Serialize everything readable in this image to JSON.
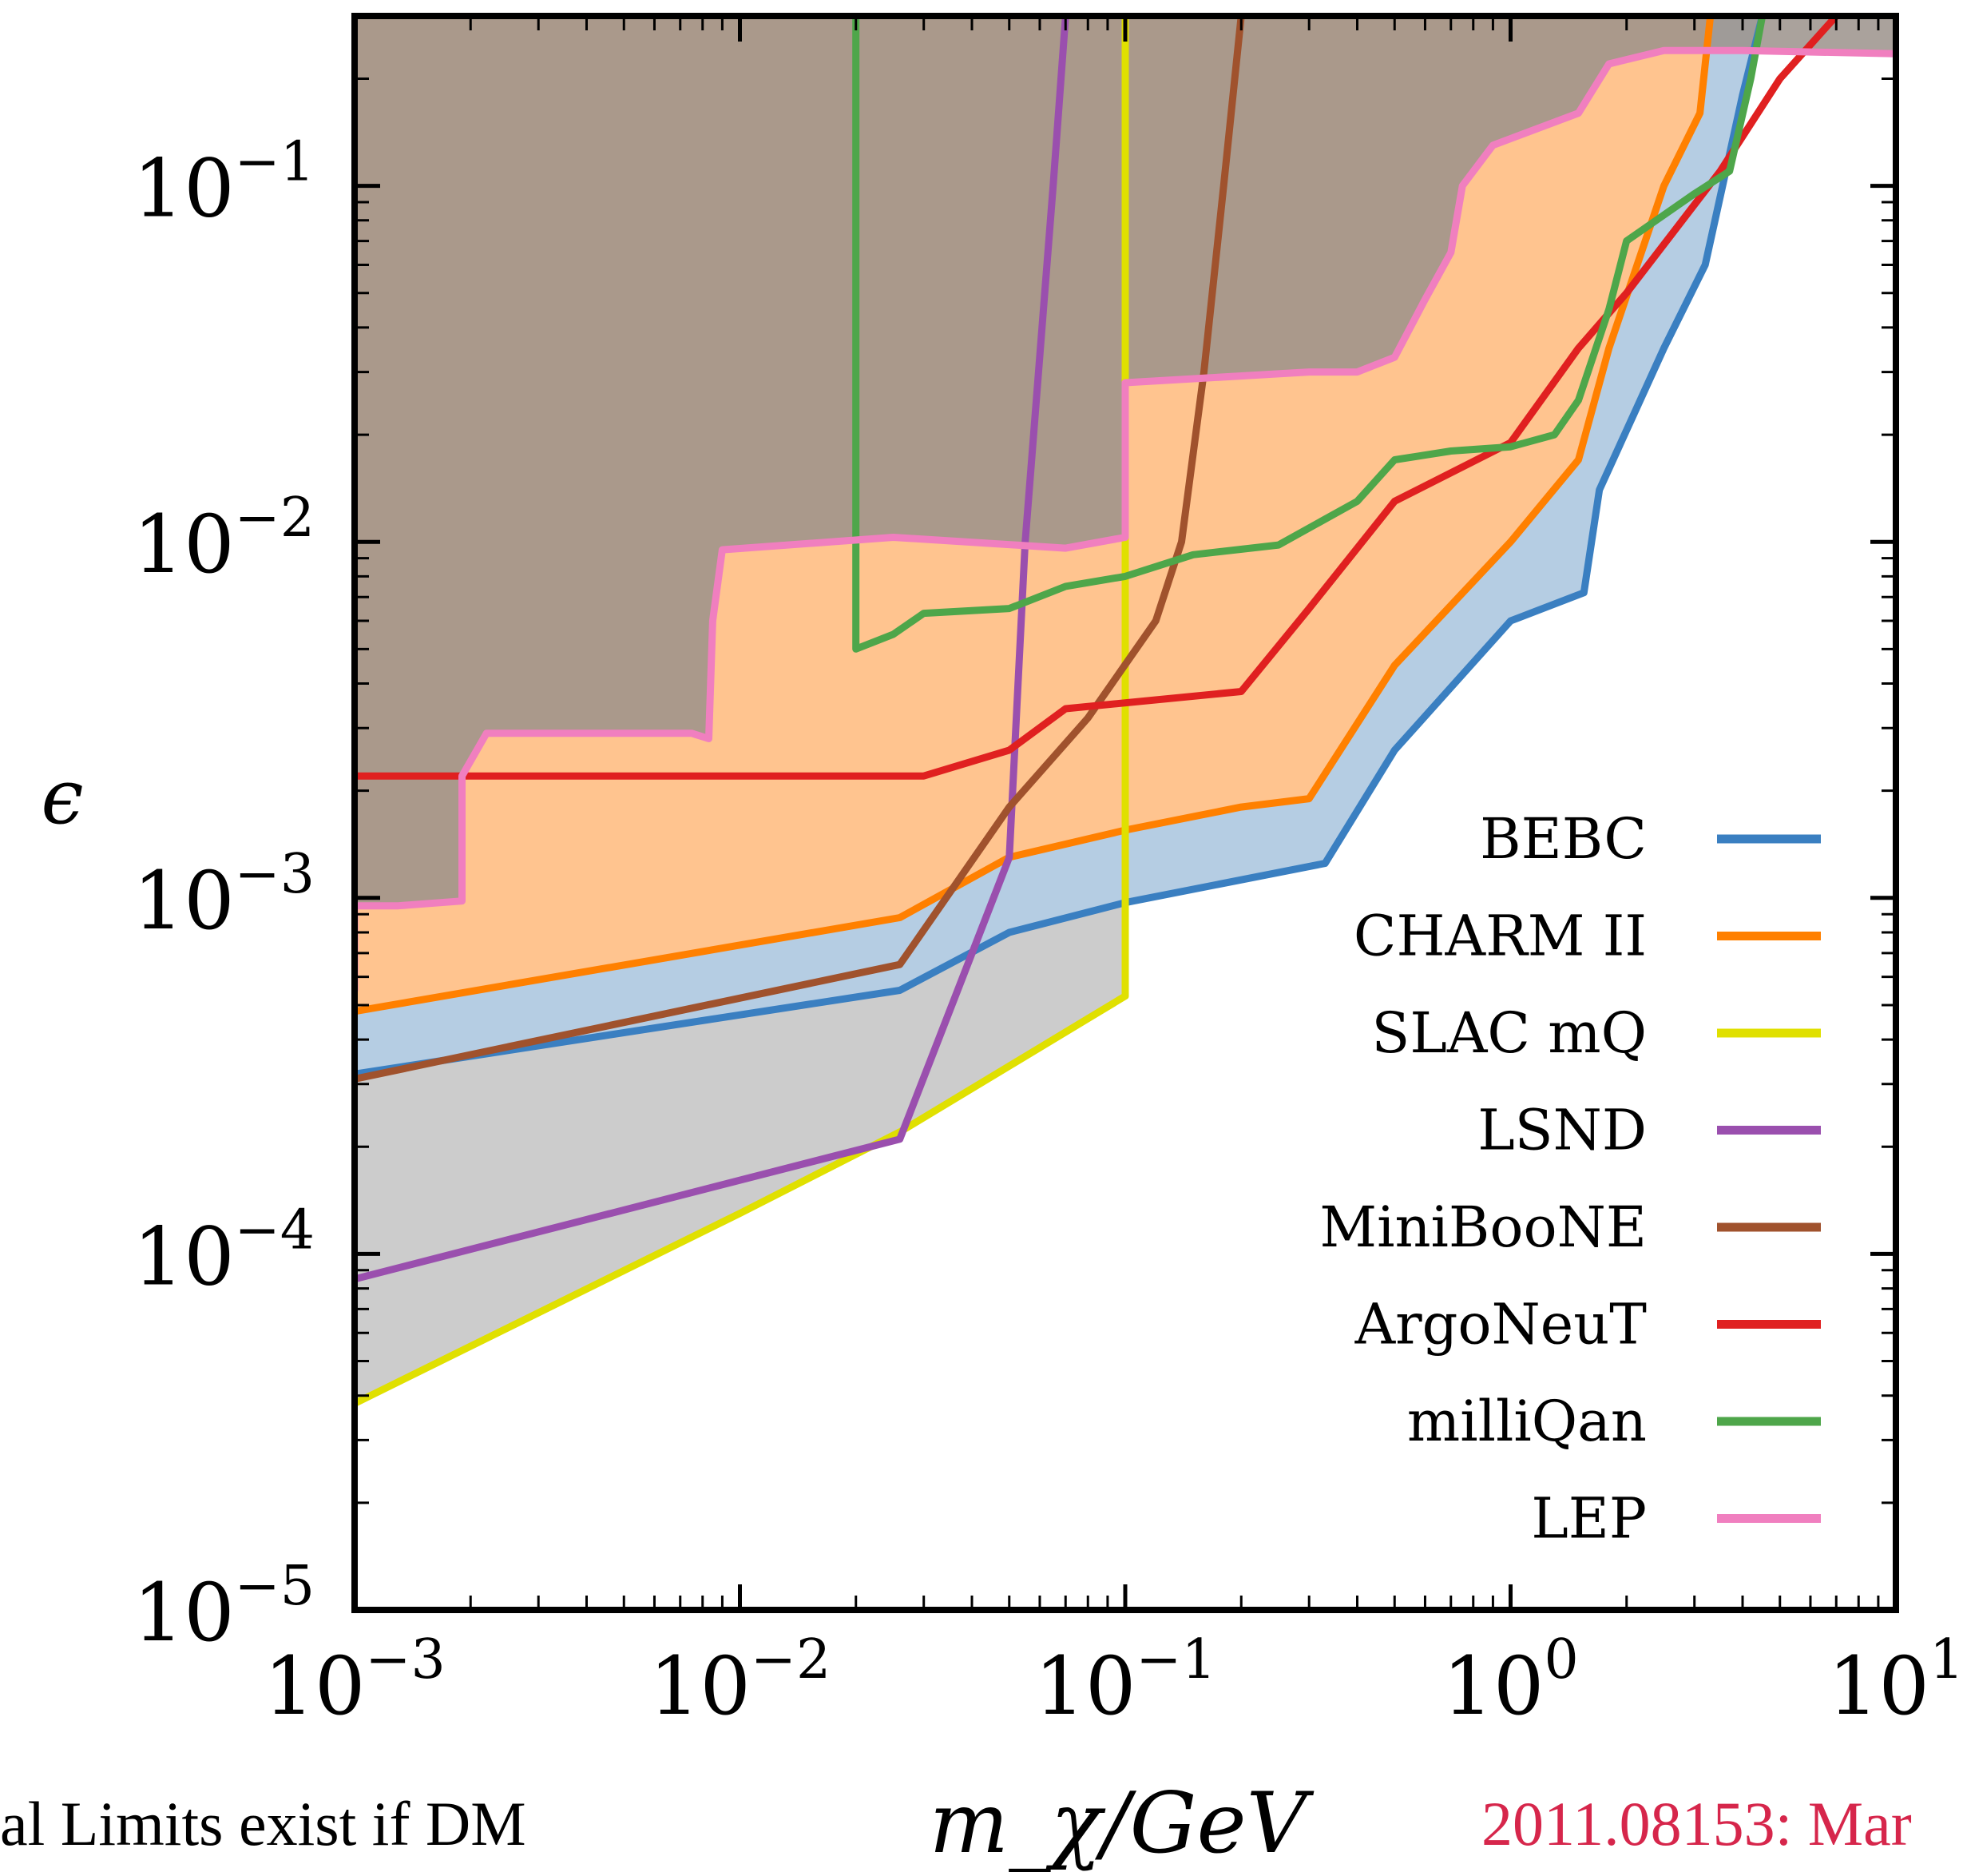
{
  "chart_data": {
    "type": "area",
    "xscale": "log",
    "yscale": "log",
    "xlim": [
      0.001,
      10
    ],
    "ylim": [
      1e-05,
      0.3
    ],
    "xlabel": "m_χ/GeV",
    "ylabel": "ϵ",
    "x_ticks": [
      "10^-3",
      "10^-2",
      "10^-1",
      "10^0",
      "10^1"
    ],
    "y_ticks": [
      "10^-5",
      "10^-4",
      "10^-3",
      "10^-2",
      "10^-1"
    ],
    "legend_position": "lower-right",
    "grid": false,
    "series": [
      {
        "name": "BEBC",
        "color": "#3a7fc1",
        "fill": "#b5cde3",
        "points": [
          [
            0.001,
            0.00032
          ],
          [
            0.026,
            0.00055
          ],
          [
            0.05,
            0.0008
          ],
          [
            0.1,
            0.00097
          ],
          [
            0.33,
            0.00125
          ],
          [
            0.5,
            0.0026
          ],
          [
            1.0,
            0.006
          ],
          [
            1.55,
            0.0072
          ],
          [
            1.7,
            0.014
          ],
          [
            2.5,
            0.035
          ],
          [
            3.2,
            0.06
          ],
          [
            4.0,
            0.18
          ],
          [
            4.5,
            0.3
          ]
        ]
      },
      {
        "name": "CHARM II",
        "color": "#ff8000",
        "fill": "#ffc48f",
        "points": [
          [
            0.001,
            0.00048
          ],
          [
            0.026,
            0.00088
          ],
          [
            0.05,
            0.0013
          ],
          [
            0.1,
            0.00155
          ],
          [
            0.2,
            0.0018
          ],
          [
            0.3,
            0.0019
          ],
          [
            0.5,
            0.0045
          ],
          [
            1.0,
            0.01
          ],
          [
            1.5,
            0.017
          ],
          [
            1.8,
            0.035
          ],
          [
            2.5,
            0.1
          ],
          [
            3.1,
            0.16
          ],
          [
            3.3,
            0.3
          ]
        ]
      },
      {
        "name": "SLAC mQ",
        "color": "#e0e000",
        "fill": "#cccccc",
        "points": [
          [
            0.001,
            3.8e-05
          ],
          [
            0.01,
            0.00013
          ],
          [
            0.026,
            0.00022
          ],
          [
            0.1,
            0.00053
          ],
          [
            0.1,
            0.3
          ]
        ]
      },
      {
        "name": "LSND",
        "color": "#9a4fae",
        "points": [
          [
            0.001,
            8.5e-05
          ],
          [
            0.026,
            0.00021
          ],
          [
            0.05,
            0.0013
          ],
          [
            0.055,
            0.01
          ],
          [
            0.065,
            0.1
          ],
          [
            0.07,
            0.3
          ]
        ]
      },
      {
        "name": "MiniBooNE",
        "color": "#a0522d",
        "points": [
          [
            0.001,
            0.00031
          ],
          [
            0.026,
            0.00065
          ],
          [
            0.05,
            0.0018
          ],
          [
            0.08,
            0.0032
          ],
          [
            0.12,
            0.006
          ],
          [
            0.14,
            0.01
          ],
          [
            0.16,
            0.03
          ],
          [
            0.18,
            0.1
          ],
          [
            0.2,
            0.3
          ]
        ]
      },
      {
        "name": "ArgoNeuT",
        "color": "#e02020",
        "points": [
          [
            0.001,
            0.0022
          ],
          [
            0.01,
            0.0022
          ],
          [
            0.03,
            0.0022
          ],
          [
            0.05,
            0.0026
          ],
          [
            0.07,
            0.0034
          ],
          [
            0.2,
            0.0038
          ],
          [
            0.3,
            0.0065
          ],
          [
            0.5,
            0.013
          ],
          [
            1.0,
            0.019
          ],
          [
            1.5,
            0.035
          ],
          [
            2.0,
            0.05
          ],
          [
            3.5,
            0.11
          ],
          [
            5.0,
            0.2
          ],
          [
            7.0,
            0.3
          ]
        ]
      },
      {
        "name": "milliQan",
        "color": "#4ea64a",
        "points": [
          [
            0.02,
            0.3
          ],
          [
            0.02,
            0.005
          ],
          [
            0.025,
            0.0055
          ],
          [
            0.03,
            0.0063
          ],
          [
            0.05,
            0.0065
          ],
          [
            0.07,
            0.0075
          ],
          [
            0.1,
            0.008
          ],
          [
            0.15,
            0.0092
          ],
          [
            0.25,
            0.0098
          ],
          [
            0.4,
            0.013
          ],
          [
            0.5,
            0.017
          ],
          [
            0.7,
            0.018
          ],
          [
            1.0,
            0.0185
          ],
          [
            1.3,
            0.02
          ],
          [
            1.5,
            0.025
          ],
          [
            1.8,
            0.045
          ],
          [
            2.0,
            0.07
          ],
          [
            3.0,
            0.095
          ],
          [
            3.7,
            0.11
          ],
          [
            4.2,
            0.2
          ],
          [
            4.5,
            0.3
          ]
        ]
      },
      {
        "name": "LEP",
        "color": "#f07fbf",
        "points": [
          [
            0.001,
            0.00055
          ],
          [
            0.001,
            0.00095
          ],
          [
            0.0013,
            0.00095
          ],
          [
            0.0019,
            0.00098
          ],
          [
            0.0019,
            0.0022
          ],
          [
            0.0022,
            0.0029
          ],
          [
            0.0075,
            0.0029
          ],
          [
            0.0083,
            0.0028
          ],
          [
            0.0085,
            0.006
          ],
          [
            0.009,
            0.0095
          ],
          [
            0.025,
            0.0103
          ],
          [
            0.07,
            0.0096
          ],
          [
            0.1,
            0.0103
          ],
          [
            0.1,
            0.028
          ],
          [
            0.3,
            0.03
          ],
          [
            0.4,
            0.03
          ],
          [
            0.5,
            0.033
          ],
          [
            0.6,
            0.048
          ],
          [
            0.7,
            0.065
          ],
          [
            0.75,
            0.1
          ],
          [
            0.9,
            0.13
          ],
          [
            1.5,
            0.16
          ],
          [
            1.8,
            0.22
          ],
          [
            2.5,
            0.24
          ],
          [
            4.0,
            0.24
          ],
          [
            10,
            0.235
          ]
        ]
      }
    ]
  },
  "captions": {
    "left": "al Limits exist if DM",
    "right": "2011.08153: Mar"
  }
}
